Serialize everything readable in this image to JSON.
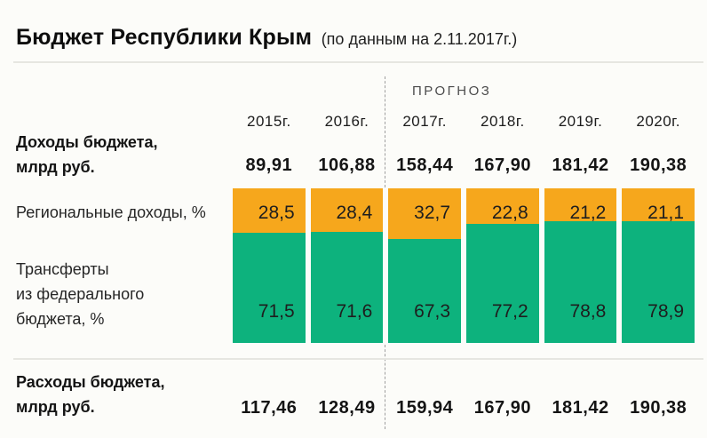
{
  "title": {
    "main": "Бюджет Республики Крым",
    "subtitle": "(по данным на 2.11.2017г.)"
  },
  "header": {
    "forecast_label": "ПРОГНОЗ",
    "years": [
      "2015г.",
      "2016г.",
      "2017г.",
      "2018г.",
      "2019г.",
      "2020г."
    ]
  },
  "rows": {
    "incomes": {
      "label_line1": "Доходы бюджета,",
      "label_line2": "млрд руб.",
      "values": [
        "89,91",
        "106,88",
        "158,44",
        "167,90",
        "181,42",
        "190,38"
      ]
    },
    "regional": {
      "label": "Региональные доходы, %",
      "values": [
        "28,5",
        "28,4",
        "32,7",
        "22,8",
        "21,2",
        "21,1"
      ]
    },
    "transfers": {
      "label_lines": [
        "Трансферты",
        "из федерального",
        "бюджета, %"
      ],
      "values": [
        "71,5",
        "71,6",
        "67,3",
        "77,2",
        "78,8",
        "78,9"
      ]
    },
    "expenses": {
      "label_line1": "Расходы бюджета,",
      "label_line2": "млрд руб.",
      "values": [
        "117,46",
        "128,49",
        "159,94",
        "167,90",
        "181,42",
        "190,38"
      ]
    }
  },
  "colors": {
    "regional_orange": "#F6A71C",
    "transfers_green": "#0DB27D",
    "divider_gray": "#9E9E9E",
    "rule_gray": "#E6E6E1"
  },
  "chart_data": {
    "type": "bar",
    "subtype": "stacked-100-percent-columns",
    "title": "Бюджет Республики Крым (по данным на 2.11.2017г.)",
    "categories": [
      "2015г.",
      "2016г.",
      "2017г.",
      "2018г.",
      "2019г.",
      "2020г."
    ],
    "forecast_label": "ПРОГНОЗ",
    "forecast_from_index": 2,
    "series": [
      {
        "name": "Региональные доходы, %",
        "color": "#F6A71C",
        "values": [
          28.5,
          28.4,
          32.7,
          22.8,
          21.2,
          21.1
        ]
      },
      {
        "name": "Трансферты из федерального бюджета, %",
        "color": "#0DB27D",
        "values": [
          71.5,
          71.6,
          67.3,
          77.2,
          78.8,
          78.9
        ]
      }
    ],
    "income_row": {
      "label": "Доходы бюджета, млрд руб.",
      "values": [
        89.91,
        106.88,
        158.44,
        167.9,
        181.42,
        190.38
      ]
    },
    "expense_row": {
      "label": "Расходы бюджета, млрд руб.",
      "values": [
        117.46,
        128.49,
        159.94,
        167.9,
        181.42,
        190.38
      ]
    },
    "ylim": [
      0,
      100
    ],
    "grid": false,
    "legend_position": "left-row-labels"
  }
}
